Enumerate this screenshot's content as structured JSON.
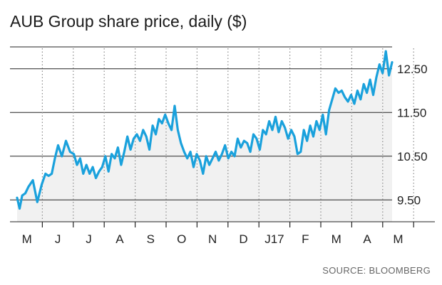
{
  "chart_data": {
    "type": "line",
    "title": "AUB Group share price, daily ($)",
    "source": "SOURCE: BLOOMBERG",
    "ylim": [
      9.0,
      13.0
    ],
    "y_ticks": [
      9.5,
      10.5,
      11.5,
      12.5
    ],
    "y_tick_labels": [
      "9.50",
      "10.50",
      "11.50",
      "12.50"
    ],
    "x_tick_labels": [
      "M",
      "J",
      "J",
      "A",
      "S",
      "O",
      "N",
      "D",
      "J17",
      "F",
      "M",
      "A",
      "M"
    ],
    "grid": "dotted vertical lines at month boundaries, solid horizontal lines at y ticks",
    "series": [
      {
        "color": "#1aa1dc",
        "x": [
          0.0,
          0.08,
          0.16,
          0.26,
          0.36,
          0.5,
          0.64,
          0.78,
          0.9,
          1.0,
          1.1,
          1.2,
          1.3,
          1.42,
          1.55,
          1.68,
          1.8,
          1.9,
          2.0,
          2.1,
          2.2,
          2.3,
          2.4,
          2.5,
          2.6,
          2.7,
          2.8,
          2.9,
          3.0,
          3.1,
          3.2,
          3.3,
          3.4,
          3.5,
          3.6,
          3.7,
          3.8,
          3.9,
          4.0,
          4.1,
          4.2,
          4.3,
          4.4,
          4.5,
          4.6,
          4.7,
          4.8,
          4.9,
          5.0,
          5.1,
          5.2,
          5.3,
          5.4,
          5.5,
          5.6,
          5.7,
          5.8,
          5.9,
          6.0,
          6.1,
          6.2,
          6.3,
          6.4,
          6.5,
          6.6,
          6.7,
          6.8,
          6.9,
          7.0,
          7.1,
          7.2,
          7.3,
          7.4,
          7.5,
          7.6,
          7.7,
          7.8,
          7.9,
          8.0,
          8.1,
          8.2,
          8.3,
          8.4,
          8.5,
          8.6,
          8.7,
          8.8,
          8.9,
          9.0,
          9.1,
          9.2,
          9.3,
          9.4,
          9.5,
          9.6,
          9.7,
          9.8,
          9.9,
          10.0,
          10.1,
          10.2,
          10.3,
          10.4,
          10.5,
          10.6,
          10.7,
          10.8,
          10.9,
          11.0,
          11.1,
          11.2,
          11.3,
          11.4,
          11.5,
          11.6,
          11.7,
          11.8,
          11.9
        ],
        "values": [
          9.55,
          9.3,
          9.6,
          9.65,
          9.8,
          9.95,
          9.45,
          9.85,
          10.1,
          10.05,
          10.1,
          10.45,
          10.75,
          10.5,
          10.85,
          10.6,
          10.55,
          10.3,
          10.45,
          10.1,
          10.3,
          10.1,
          10.25,
          10.0,
          10.15,
          10.25,
          10.5,
          10.15,
          10.55,
          10.45,
          10.7,
          10.3,
          10.6,
          10.95,
          10.65,
          10.9,
          11.0,
          10.85,
          11.1,
          10.95,
          10.65,
          11.2,
          11.0,
          11.35,
          11.25,
          11.45,
          11.25,
          11.1,
          11.65,
          11.1,
          10.8,
          10.6,
          10.45,
          10.6,
          10.25,
          10.55,
          10.4,
          10.1,
          10.5,
          10.3,
          10.45,
          10.6,
          10.4,
          10.55,
          10.75,
          10.45,
          10.6,
          10.5,
          10.9,
          10.7,
          10.85,
          10.8,
          10.6,
          11.0,
          10.9,
          10.65,
          11.1,
          11.0,
          11.3,
          11.1,
          11.4,
          11.05,
          11.3,
          11.15,
          10.9,
          11.1,
          10.95,
          10.55,
          10.6,
          11.1,
          10.85,
          11.2,
          10.95,
          11.3,
          11.1,
          11.45,
          11.0,
          11.55,
          11.8,
          12.05,
          11.95,
          12.0,
          11.85,
          11.75,
          11.9,
          11.7,
          12.0,
          11.8,
          12.15,
          11.95,
          12.25,
          11.9,
          12.3,
          12.6,
          12.4,
          12.9,
          12.35,
          12.65
        ]
      }
    ]
  }
}
